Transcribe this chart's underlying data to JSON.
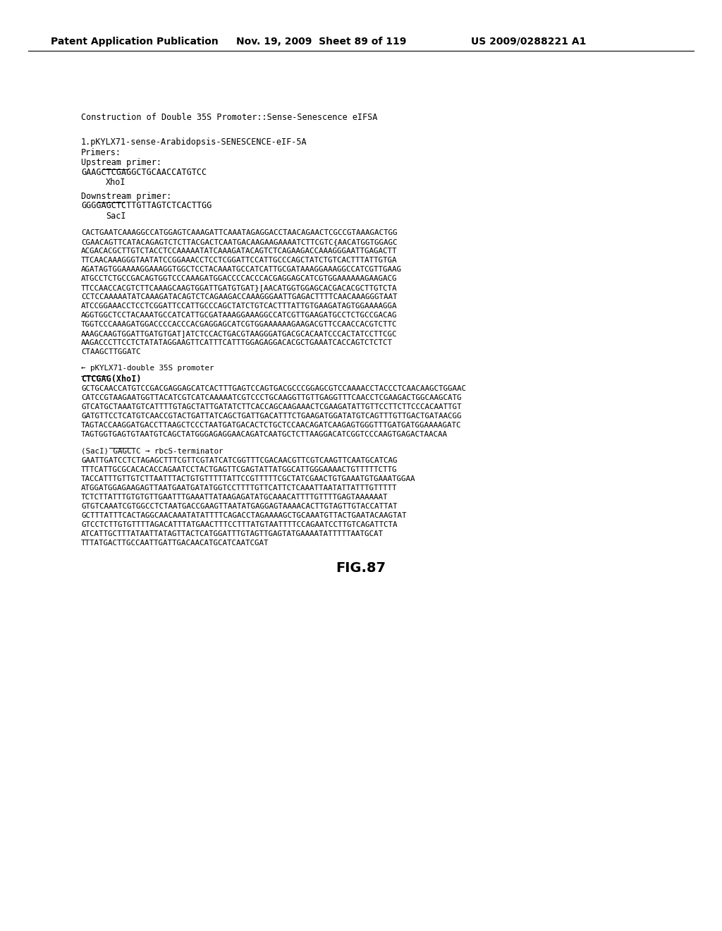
{
  "header_left": "Patent Application Publication",
  "header_mid": "Nov. 19, 2009  Sheet 89 of 119",
  "header_right": "US 2009/0288221 A1",
  "title": "Construction of Double 35S Promoter::Sense-Senescence eIFSA",
  "section1_title": "1.pKYLX71-sense-Arabidopsis-SENESCENCE-eIF-5A",
  "primers_label": "Primers:",
  "upstream_label": "Upstream primer:",
  "upstream_seq": "GAAGCTCGAGGCTGCAACCATGTCC",
  "upstream_site": "XhoI",
  "downstream_label": "Downstream primer:",
  "downstream_seq": "GGGGAGCTCTTGTTAGTCTCACTTGG",
  "downstream_site": "SacI",
  "body_seq": [
    "CACTGAATCAAAGGCCATGGAGTCAAAGATTCAAATAGAGGACCTAACAGAACTCGCCGTAAAGACTGG",
    "CGAACAGTTCATACAGAGTCTCTTACGACTCAATGACAAGAAGAAAATCTTCGTC{AACATGGTGGAGC",
    "ACGACACGCTTGTCTACCTCCAAAAATATCAAAGATACAGTCTCAGAAGACCAAAGGGAATTGAGACTT",
    "TTCAACAAAGGGTAATATCCGGAAACCTCCTCGGATTCCATTGCCCAGCTATCTGTCACTTTATTGTGA",
    "AGATAGTGGAAAAGGAAAGGTGGCTCCTACAAATGCCATCATTGCGATAAAGGAAAGGCCATCGTTGAAG",
    "ATGCCTCTGCCGACAGTGGTCCCAAAGATGGACCCCACCCACGAGGAGCATCGTGGAAAAAAGAAGACG",
    "TTCCAACCACGTCTTCAAAGCAAGTGGATTGATGTGAT}[AACATGGTGGAGCACGACACGCTTGTCTA",
    "CCTCCAAAAATATCAAAGATACAGTCTCAGAAGACCAAAGGGAATTGAGACTTTTCAACAAAGGGTAAT",
    "ATCCGGAAACCTCCTCGGATTCCATTGCCCAGCTATCTGTCACTTTATTGTGAAGATAGTGGAAAAGGA",
    "AGGTGGCTCCTACAAATGCCATCATTGCGATAAAGGAAAGGCCATCGTTGAAGATGCCTCTGCCGACAG",
    "TGGTCCCAAAGATGGACCCCACCCACGAGGAGCATCGTGGAAAAAAGAAGACGTTCCAACCACGTCTTC",
    "AAAGCAAGTGGATTGATGTGAT]ATCTCCACTGACGTAAGGGATGACGCACAATCCCACTATCCTTCGC",
    "AAGACCCTTCCTCTATATAGGAAGTTCATTTCATTTGGAGAGGACACGCTGAAATCACCAGTCTCTCT",
    "CTAAGCTTGGATC"
  ],
  "arrow_label": "← pKYLX71-double 35S promoter",
  "ctcgag_line": "CTCGAG(XhoI)",
  "double35s_seq": [
    "GCTGCAACCATGTCCGACGAGGAGCATCACTTTGAGTCCAGTGACGCCCGGAGCGTCCAAAACCTACCCTCAACAAGCTGGAAC",
    "CATCCGTAAGAATGGTTACATCGTCATCAAAAATCGTCCCTGCAAGGTTGTTGAGGTTTCAACCTCGAAGACTGGCAAGCATG",
    "GTCATGCTAAATGTCATTTTGTAGCTATTGATATCTTCACCAGCAAGAAACTCGAAGATATTGTTCCTTCTTCCCACAATTGT",
    "GATGTTCCTCATGTCAACCGTACTGATTATCAGCTGATTGACATTTCTGAAGATGGATATGTCAGTTTGTTGACTGATAACGG",
    "TAGTACCAAGGATGACCTTAAGCTCCCTAATGATGACACTCTGCTCCAACAGATCAAGAGTGGGTTTGATGATGGAAAAGATC",
    "TAGTGGTGAGTGTAATGTCAGCTATGGGAGAGGAACAGATCAATGCTCTTAAGGACATCGGTCCCAAGTGAGACTAACAA"
  ],
  "sacl_arrow": "(SacI) GAGCTC → rbcS-terminator",
  "rbcs_seq": [
    "GAATTGATCCTCTAGAGCTTTCGTTCGTATCATCGGTTTCGACAACGTTCGTCAAGTTCAATGCATCAG",
    "TTTCATTGCGCACACACCAGAATCCTACTGAGTTCGAGTATTATGGCATTGGGAAAACTGTTTTTCTTG",
    "TACCATTTGTTGTCTTAATTTACTGTGTTTTTATTCCGTTTTTCGCTATCGAACTGTGAAATGTGAAATGGAA",
    "ATGGATGGAGAAGAGTTAATGAATGATATGGTCCTTTTGTTCATTCTCAAATTAATATTATTTGTTTTT",
    "TCTCTTATTTGTGTGTTGAATTTGAAATTATAAGAGATATGCAAACATTTTGTTTTGAGTAAAAAAT",
    "GTGTCAAATCGTGGCCTCTAATGACCGAAGTTAATATGAGGAGTAAAACACTTGTAGTTGTACCATTAT",
    "GCTTTATTTCACTAGGCAACAAATATATTTTCAGACCTAGAAAAGCTGCAAATGTTACTGAATACAAGTAT",
    "GTCCTCTTGTGTTTTAGACATTTATGAACTTTCCTTTATGTAATTTTCCAGAATCCTTGTCAGATTCTA",
    "ATCATTGCTTTATAATTATAGTTACTCATGGATTTGTAGTTGAGTATGAAAATATTTTTAATGCAT",
    "TTTATGACTTGCCAATTGATTGACAACATGCATCAATCGAT"
  ],
  "figure_label": "FIG.87",
  "bg_color": "#ffffff",
  "text_color": "#000000",
  "header_font_size": 10,
  "body_font_size": 7.8,
  "title_font_size": 8.5,
  "mono_font_size": 7.8
}
